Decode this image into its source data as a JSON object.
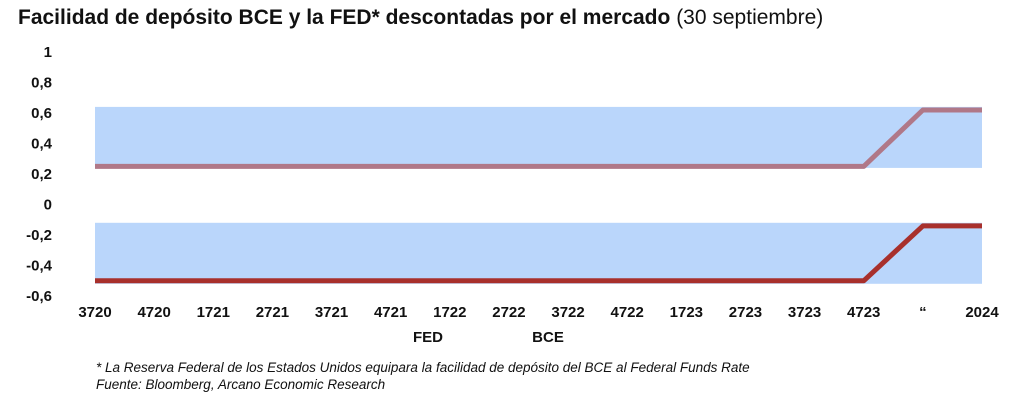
{
  "header": {
    "title_bold": "Facilidad de depósito BCE y la FED* descontadas por el mercado",
    "title_rest": "(30 septiembre)"
  },
  "chart_data": {
    "type": "line",
    "title": "Facilidad de depósito BCE y la FED* descontadas por el mercado (30 septiembre)",
    "categories": [
      "3720",
      "4720",
      "1721",
      "2721",
      "3721",
      "4721",
      "1722",
      "2722",
      "3722",
      "4722",
      "1723",
      "2723",
      "3723",
      "4723",
      "“",
      "2024"
    ],
    "y_ticks": [
      "1",
      "0,8",
      "0,6",
      "0,4",
      "0,2",
      "0",
      "-0,2",
      "-0,4",
      "-0,6"
    ],
    "ylim": [
      -0.6,
      1
    ],
    "series": [
      {
        "name": "FED",
        "color": "#b07888",
        "values": [
          0.25,
          0.25,
          0.25,
          0.25,
          0.25,
          0.25,
          0.25,
          0.25,
          0.25,
          0.25,
          0.25,
          0.25,
          0.25,
          0.25,
          0.62,
          0.62
        ]
      },
      {
        "name": "BCE",
        "color": "#a8302c",
        "values": [
          -0.5,
          -0.5,
          -0.5,
          -0.5,
          -0.5,
          -0.5,
          -0.5,
          -0.5,
          -0.5,
          -0.5,
          -0.5,
          -0.5,
          -0.5,
          -0.5,
          -0.14,
          -0.14
        ]
      }
    ],
    "bands": [
      {
        "from": 0.24,
        "to": 0.64,
        "color": "#bad6fb"
      },
      {
        "from": -0.52,
        "to": -0.12,
        "color": "#bad6fb"
      }
    ],
    "grid": false,
    "legend_position": "bottom"
  },
  "footnotes": {
    "note": "* La Reserva Federal de los Estados Unidos equipara la facilidad de depósito del BCE al Federal Funds Rate",
    "source": "Fuente: Bloomberg, Arcano Economic Research"
  }
}
